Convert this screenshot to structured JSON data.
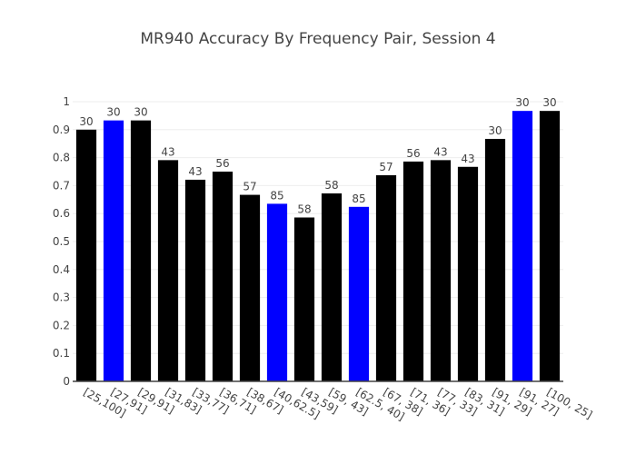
{
  "chart_data": {
    "type": "bar",
    "title": "MR940 Accuracy By Frequency Pair, Session 4",
    "xlabel": "",
    "ylabel": "",
    "ylim": [
      0,
      1
    ],
    "yticks": [
      0,
      0.1,
      0.2,
      0.3,
      0.4,
      0.5,
      0.6,
      0.7,
      0.8,
      0.9,
      1
    ],
    "ytick_labels": [
      "0",
      "0.1",
      "0.2",
      "0.3",
      "0.4",
      "0.5",
      "0.6",
      "0.7",
      "0.8",
      "0.9",
      "1"
    ],
    "grid": true,
    "legend": "none",
    "colors": {
      "default": "#000000",
      "highlight": "#0000ff",
      "grid": "#eeeeee",
      "axis": "#444444"
    },
    "categories": [
      "[25,100]",
      "[27,91]",
      "[29,91]",
      "[31,83]",
      "[33,77]",
      "[36,71]",
      "[38,67]",
      "[40,62.5]",
      "[43,59]",
      "[59, 43]",
      "[62.5, 40]",
      "[67, 38]",
      "[71, 36]",
      "[77, 33]",
      "[83, 31]",
      "[91, 29]",
      "[91, 27]",
      "[100, 25]"
    ],
    "values": [
      0.9,
      0.933,
      0.933,
      0.791,
      0.721,
      0.75,
      0.667,
      0.635,
      0.586,
      0.672,
      0.624,
      0.737,
      0.786,
      0.791,
      0.767,
      0.867,
      0.967,
      0.967
    ],
    "labels": [
      "30",
      "30",
      "30",
      "43",
      "43",
      "56",
      "57",
      "85",
      "58",
      "58",
      "85",
      "57",
      "56",
      "43",
      "43",
      "30",
      "30",
      "30"
    ],
    "highlighted": [
      false,
      true,
      false,
      false,
      false,
      false,
      false,
      true,
      false,
      false,
      true,
      false,
      false,
      false,
      false,
      false,
      true,
      false
    ]
  }
}
